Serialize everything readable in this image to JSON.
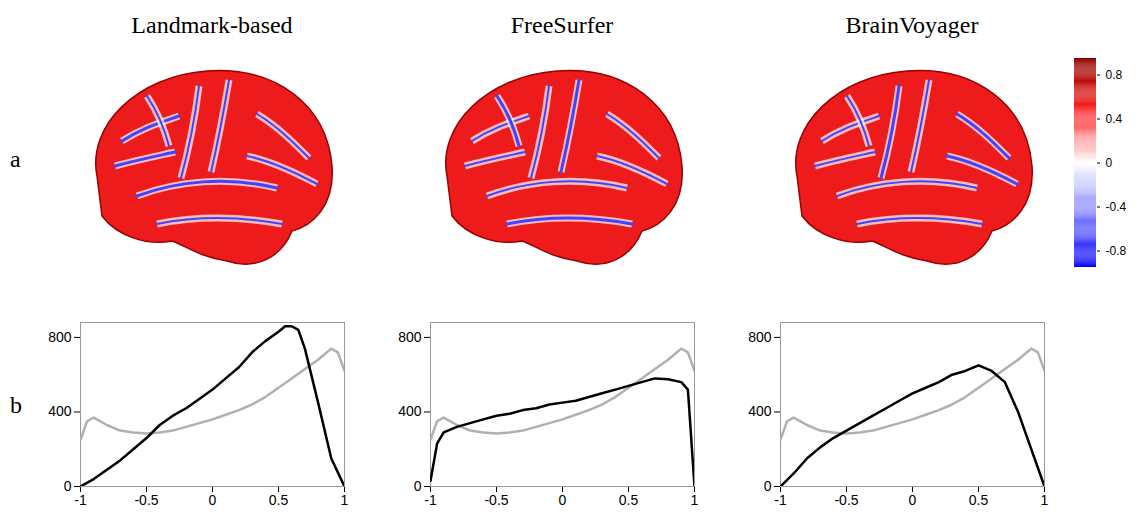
{
  "panel_labels": [
    "a",
    "b"
  ],
  "brain_maps": {
    "titles": [
      "Landmark-based",
      "FreeSurfer",
      "BrainVoyager"
    ],
    "colorbar": {
      "range": [
        -0.95,
        0.95
      ],
      "ticks": [
        0.8,
        0.4,
        0,
        -0.4,
        -0.8
      ],
      "colors": [
        "#0000ff",
        "#8080ff",
        "#ffffff",
        "#ff2020",
        "#8b0000"
      ]
    }
  },
  "chart_data": [
    {
      "type": "line",
      "xlim": [
        -1,
        1
      ],
      "xticks": [
        -1,
        -0.5,
        0,
        0.5,
        1
      ],
      "ylim": [
        0,
        880
      ],
      "yticks": [
        0,
        400,
        800
      ],
      "series": [
        {
          "color": "#b0b0b0",
          "x": [
            -1,
            -0.95,
            -0.9,
            -0.8,
            -0.7,
            -0.6,
            -0.5,
            -0.4,
            -0.3,
            -0.2,
            -0.1,
            0,
            0.1,
            0.2,
            0.3,
            0.4,
            0.5,
            0.6,
            0.7,
            0.8,
            0.9,
            0.95,
            1
          ],
          "values": [
            250,
            350,
            370,
            330,
            300,
            290,
            285,
            290,
            300,
            320,
            340,
            360,
            385,
            410,
            440,
            480,
            530,
            580,
            630,
            680,
            740,
            720,
            620
          ]
        },
        {
          "color": "#000000",
          "x": [
            -1,
            -0.9,
            -0.8,
            -0.7,
            -0.6,
            -0.5,
            -0.4,
            -0.3,
            -0.2,
            -0.1,
            0,
            0.1,
            0.2,
            0.3,
            0.4,
            0.5,
            0.55,
            0.6,
            0.65,
            0.7,
            0.8,
            0.9,
            1
          ],
          "values": [
            0,
            40,
            90,
            140,
            200,
            260,
            330,
            380,
            420,
            470,
            520,
            580,
            640,
            720,
            780,
            830,
            860,
            860,
            840,
            740,
            450,
            150,
            0
          ]
        }
      ]
    },
    {
      "type": "line",
      "xlim": [
        -1,
        1
      ],
      "xticks": [
        -1,
        -0.5,
        0,
        0.5,
        1
      ],
      "ylim": [
        0,
        880
      ],
      "yticks": [
        0,
        400,
        800
      ],
      "series": [
        {
          "color": "#b0b0b0",
          "x": [
            -1,
            -0.95,
            -0.9,
            -0.8,
            -0.7,
            -0.6,
            -0.5,
            -0.4,
            -0.3,
            -0.2,
            -0.1,
            0,
            0.1,
            0.2,
            0.3,
            0.4,
            0.5,
            0.6,
            0.7,
            0.8,
            0.9,
            0.95,
            1
          ],
          "values": [
            250,
            350,
            370,
            330,
            300,
            290,
            285,
            290,
            300,
            320,
            340,
            360,
            385,
            410,
            440,
            480,
            530,
            580,
            630,
            680,
            740,
            720,
            620
          ]
        },
        {
          "color": "#000000",
          "x": [
            -1,
            -0.95,
            -0.9,
            -0.8,
            -0.7,
            -0.6,
            -0.5,
            -0.4,
            -0.3,
            -0.2,
            -0.1,
            0,
            0.1,
            0.2,
            0.3,
            0.4,
            0.5,
            0.6,
            0.7,
            0.8,
            0.9,
            0.95,
            1
          ],
          "values": [
            30,
            230,
            290,
            320,
            340,
            360,
            380,
            390,
            410,
            420,
            440,
            450,
            460,
            480,
            500,
            520,
            540,
            560,
            580,
            575,
            560,
            520,
            0
          ]
        }
      ]
    },
    {
      "type": "line",
      "xlim": [
        -1,
        1
      ],
      "xticks": [
        -1,
        -0.5,
        0,
        0.5,
        1
      ],
      "ylim": [
        0,
        880
      ],
      "yticks": [
        0,
        400,
        800
      ],
      "series": [
        {
          "color": "#b0b0b0",
          "x": [
            -1,
            -0.95,
            -0.9,
            -0.8,
            -0.7,
            -0.6,
            -0.5,
            -0.4,
            -0.3,
            -0.2,
            -0.1,
            0,
            0.1,
            0.2,
            0.3,
            0.4,
            0.5,
            0.6,
            0.7,
            0.8,
            0.9,
            0.95,
            1
          ],
          "values": [
            250,
            350,
            370,
            330,
            300,
            290,
            285,
            290,
            300,
            320,
            340,
            360,
            385,
            410,
            440,
            480,
            530,
            580,
            630,
            680,
            740,
            720,
            620
          ]
        },
        {
          "color": "#000000",
          "x": [
            -1,
            -0.9,
            -0.8,
            -0.7,
            -0.6,
            -0.5,
            -0.4,
            -0.3,
            -0.2,
            -0.1,
            0,
            0.1,
            0.2,
            0.3,
            0.4,
            0.5,
            0.6,
            0.7,
            0.8,
            0.9,
            1
          ],
          "values": [
            0,
            70,
            150,
            210,
            260,
            300,
            340,
            380,
            420,
            460,
            500,
            530,
            560,
            600,
            620,
            650,
            620,
            560,
            400,
            200,
            0
          ]
        }
      ]
    }
  ]
}
